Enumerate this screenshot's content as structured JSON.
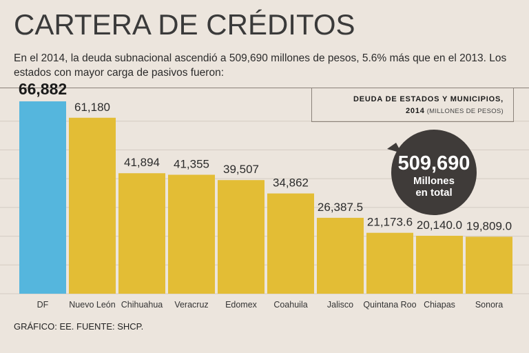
{
  "header": {
    "title": "CARTERA DE CRÉDITOS",
    "subtitle": "En el 2014, la deuda subnacional ascendió a 509,690 millones de pesos, 5.6% más que en el 2013. Los estados con mayor carga de pasivos fueron:"
  },
  "legend": {
    "line1": "DEUDA  DE ESTADOS Y MUNICIPIOS,",
    "year": "2014",
    "unit": "(MILLONES DE PESOS)"
  },
  "bubble": {
    "value": "509,690",
    "line1": "Millones",
    "line2": "en total"
  },
  "footer": {
    "source": "GRÁFICO: EE. FUENTE: SHCP."
  },
  "colors": {
    "highlight": "#55b6dd",
    "bar": "#e3bd35",
    "bubble": "#3f3b39",
    "grid": "#d3cbc2"
  },
  "chart_data": {
    "type": "bar",
    "title": "DEUDA DE ESTADOS Y MUNICIPIOS, 2014 (MILLONES DE PESOS)",
    "xlabel": "",
    "ylabel": "",
    "ylim": [
      0,
      70000
    ],
    "grid": true,
    "categories": [
      "DF",
      "Nuevo León",
      "Chihuahua",
      "Veracruz",
      "Edomex",
      "Coahuila",
      "Jalisco",
      "Quintana Roo",
      "Chiapas",
      "Sonora"
    ],
    "values": [
      66882,
      61180,
      41894,
      41355,
      39507,
      34862,
      26387.5,
      21173.6,
      20140.0,
      19809.0
    ],
    "labels": [
      "66,882",
      "61,180",
      "41,894",
      "41,355",
      "39,507",
      "34,862",
      "26,387.5",
      "21,173.6",
      "20,140.0",
      "19,809.0"
    ],
    "highlight_index": 0
  }
}
